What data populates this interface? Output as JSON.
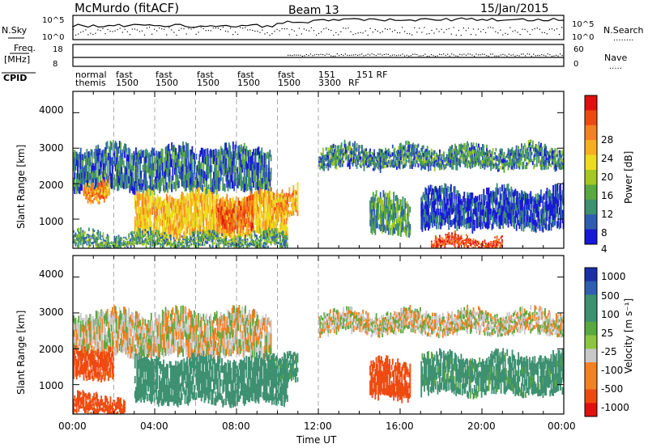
{
  "header": {
    "station": "McMurdo (fitACF)",
    "beam": "Beam 13",
    "date": "15/Jan/2015"
  },
  "top_panels": {
    "nsky_label": "N.Sky",
    "nsky_ticks": [
      "10^5",
      "10^0"
    ],
    "nsearch_label": "N.Search",
    "nsearch_ticks": [
      "10^5",
      "10^0"
    ],
    "freq_label_1": "Freq.",
    "freq_label_2": "[MHz]",
    "freq_ticks": [
      "18",
      "8"
    ],
    "nave_label": "Nave",
    "nave_ticks": [
      "60",
      "0"
    ],
    "cpid_label": "CPID",
    "cpid_entries": [
      {
        "line1": "normal",
        "line2": "themis"
      },
      {
        "line1": "fast",
        "line2": "1500"
      },
      {
        "line1": "fast",
        "line2": "1500"
      },
      {
        "line1": "fast",
        "line2": "1500"
      },
      {
        "line1": "fast",
        "line2": "1500"
      },
      {
        "line1": "fast",
        "line2": "1500"
      },
      {
        "line1": "151",
        "line2": "3300"
      },
      {
        "line1": "151 RF",
        "line2": "RF"
      }
    ]
  },
  "panels": [
    {
      "ylabel": "Slant Range [km]",
      "yticks": [
        "4000",
        "3000",
        "2000",
        "1000"
      ],
      "colorbar_label": "Power [dB]",
      "colorbar_ticks": [
        "28",
        "24",
        "20",
        "16",
        "12",
        "8",
        "4"
      ],
      "colorbar_colors": [
        "#e01010",
        "#ee4a10",
        "#f58020",
        "#f5b020",
        "#ecdc20",
        "#a4c820",
        "#5aa840",
        "#3d9070",
        "#2f5eb0",
        "#1818d8"
      ]
    },
    {
      "ylabel": "Slant Range [km]",
      "yticks": [
        "4000",
        "3000",
        "2000",
        "1000"
      ],
      "colorbar_label": "Velocity [m s⁻¹]",
      "colorbar_ticks": [
        "1000",
        "500",
        "100",
        "25",
        "-25",
        "-100",
        "-500",
        "-1000"
      ],
      "colorbar_colors": [
        "#1a2fa8",
        "#2f5eb0",
        "#3d9070",
        "#3d9070",
        "#5aa840",
        "#8cc63f",
        "#c8c8c8",
        "#f58020",
        "#f58020",
        "#ee4a10",
        "#e01010"
      ]
    }
  ],
  "xaxis": {
    "label": "Time UT",
    "ticks": [
      "00:00",
      "04:00",
      "08:00",
      "12:00",
      "16:00",
      "20:00",
      "00:00"
    ]
  },
  "chart_data": [
    {
      "type": "heatmap",
      "title": "McMurdo (fitACF)  Beam 13  15/Jan/2015",
      "xlabel": "Time UT",
      "ylabel": "Slant Range [km]",
      "xlim": [
        "00:00",
        "24:00"
      ],
      "ylim": [
        180,
        4600
      ],
      "colorbar": {
        "label": "Power [dB]",
        "range": [
          0,
          30
        ]
      },
      "echo_regions": [
        {
          "start_hour": 0.0,
          "end_hour": 9.7,
          "range_km": [
            1800,
            3000
          ],
          "value": 10
        },
        {
          "start_hour": 0.5,
          "end_hour": 1.8,
          "range_km": [
            1550,
            2050
          ],
          "value": 22
        },
        {
          "start_hour": 3.0,
          "end_hour": 10.5,
          "range_km": [
            500,
            1700
          ],
          "value": 20
        },
        {
          "start_hour": 7.0,
          "end_hour": 8.8,
          "range_km": [
            700,
            1500
          ],
          "value": 25
        },
        {
          "start_hour": 9.8,
          "end_hour": 11.0,
          "range_km": [
            1150,
            1900
          ],
          "value": 22
        },
        {
          "start_hour": 12.0,
          "end_hour": 24.0,
          "range_km": [
            2450,
            3000
          ],
          "value": 11
        },
        {
          "start_hour": 14.5,
          "end_hour": 16.5,
          "range_km": [
            600,
            1600
          ],
          "value": 12
        },
        {
          "start_hour": 17.0,
          "end_hour": 24.0,
          "range_km": [
            750,
            1800
          ],
          "value": 8
        },
        {
          "start_hour": 17.5,
          "end_hour": 21.0,
          "range_km": [
            200,
            450
          ],
          "value": 27
        },
        {
          "start_hour": 0.0,
          "end_hour": 10.5,
          "range_km": [
            200,
            550
          ],
          "value": 12
        }
      ]
    },
    {
      "type": "heatmap",
      "title": "",
      "xlabel": "Time UT",
      "ylabel": "Slant Range [km]",
      "xlim": [
        "00:00",
        "24:00"
      ],
      "ylim": [
        180,
        4600
      ],
      "colorbar": {
        "label": "Velocity [m s⁻¹]",
        "range": [
          -1000,
          1000
        ]
      },
      "echo_regions": [
        {
          "start_hour": 0.0,
          "end_hour": 9.7,
          "range_km": [
            1800,
            3000
          ],
          "value": 0
        },
        {
          "start_hour": 0.0,
          "end_hour": 2.0,
          "range_km": [
            1200,
            2000
          ],
          "value": -150
        },
        {
          "start_hour": 3.0,
          "end_hour": 10.5,
          "range_km": [
            500,
            1700
          ],
          "value": 200
        },
        {
          "start_hour": 9.8,
          "end_hour": 11.0,
          "range_km": [
            1150,
            1900
          ],
          "value": 150
        },
        {
          "start_hour": 12.0,
          "end_hour": 24.0,
          "range_km": [
            2450,
            3000
          ],
          "value": 0
        },
        {
          "start_hour": 14.5,
          "end_hour": 16.5,
          "range_km": [
            600,
            1600
          ],
          "value": -200
        },
        {
          "start_hour": 17.0,
          "end_hour": 24.0,
          "range_km": [
            750,
            1800
          ],
          "value": 150
        },
        {
          "start_hour": 0.0,
          "end_hour": 2.5,
          "range_km": [
            200,
            650
          ],
          "value": -300
        }
      ]
    }
  ]
}
